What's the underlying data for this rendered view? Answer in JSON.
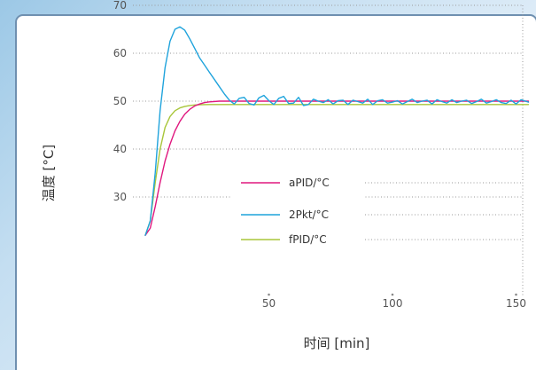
{
  "chart_data": {
    "type": "line",
    "title": "",
    "xlabel": "时间 [min]",
    "ylabel": "温度 [°C]",
    "xlim": [
      0,
      155
    ],
    "ylim": [
      20,
      72
    ],
    "x_ticks": [
      "50",
      "100",
      "150"
    ],
    "y_ticks": [
      "30",
      "40",
      "50",
      "60",
      "70"
    ],
    "grid": "dotted",
    "legend": "center",
    "series": [
      {
        "name": "aPID/°C",
        "color": "#e0187f",
        "x": [
          0,
          2,
          4,
          6,
          8,
          10,
          12,
          14,
          16,
          18,
          20,
          22,
          24,
          26,
          30,
          40,
          60,
          80,
          100,
          120,
          140,
          155
        ],
        "y": [
          22,
          23.5,
          28,
          33,
          37.5,
          41,
          43.8,
          45.8,
          47.3,
          48.3,
          49,
          49.4,
          49.7,
          49.85,
          50,
          50,
          50,
          50,
          50,
          50,
          50,
          50
        ]
      },
      {
        "name": "2Pkt/°C",
        "color": "#1fa3dc",
        "x": [
          0,
          2,
          4,
          6,
          8,
          10,
          12,
          14,
          16,
          18,
          20,
          22,
          24,
          26,
          28,
          30,
          32,
          34,
          36,
          38,
          40,
          42,
          44,
          46,
          48,
          50,
          52,
          54,
          56,
          58,
          60,
          62,
          64,
          66,
          68,
          70,
          72,
          74,
          76,
          78,
          80,
          82,
          84,
          86,
          88,
          90,
          92,
          94,
          96,
          98,
          100,
          102,
          104,
          106,
          108,
          110,
          112,
          114,
          116,
          118,
          120,
          122,
          124,
          126,
          128,
          130,
          132,
          134,
          136,
          138,
          140,
          142,
          144,
          146,
          148,
          150,
          152,
          155
        ],
        "y": [
          22,
          25,
          35,
          48,
          57,
          62.5,
          65,
          65.5,
          64.8,
          63,
          61,
          59,
          57.5,
          56,
          54.5,
          53,
          51.5,
          50.2,
          49.4,
          50.6,
          50.8,
          49.5,
          49.2,
          50.7,
          51.2,
          50.1,
          49.3,
          50.6,
          51,
          49.5,
          49.6,
          50.8,
          49.1,
          49.3,
          50.4,
          50,
          49.7,
          50.3,
          49.4,
          50.1,
          50.2,
          49.3,
          50.2,
          49.9,
          49.6,
          50.4,
          49.3,
          50.1,
          50.3,
          49.6,
          49.8,
          50.1,
          49.4,
          49.9,
          50.4,
          49.7,
          50,
          50.2,
          49.4,
          50.3,
          49.9,
          49.6,
          50.3,
          49.7,
          50,
          50.2,
          49.5,
          49.9,
          50.4,
          49.6,
          49.9,
          50.3,
          49.7,
          49.5,
          50.2,
          49.4,
          50.3,
          49.8
        ]
      },
      {
        "name": "fPID/°C",
        "color": "#a8c63a",
        "x": [
          0,
          2,
          4,
          6,
          8,
          10,
          12,
          14,
          16,
          18,
          20,
          22,
          26,
          30,
          40,
          60,
          80,
          100,
          120,
          140,
          155
        ],
        "y": [
          22,
          25,
          33,
          40,
          44.5,
          46.8,
          48,
          48.6,
          48.9,
          49.1,
          49.2,
          49.25,
          49.3,
          49.3,
          49.3,
          49.3,
          49.3,
          49.3,
          49.3,
          49.3,
          49.3
        ]
      }
    ]
  }
}
